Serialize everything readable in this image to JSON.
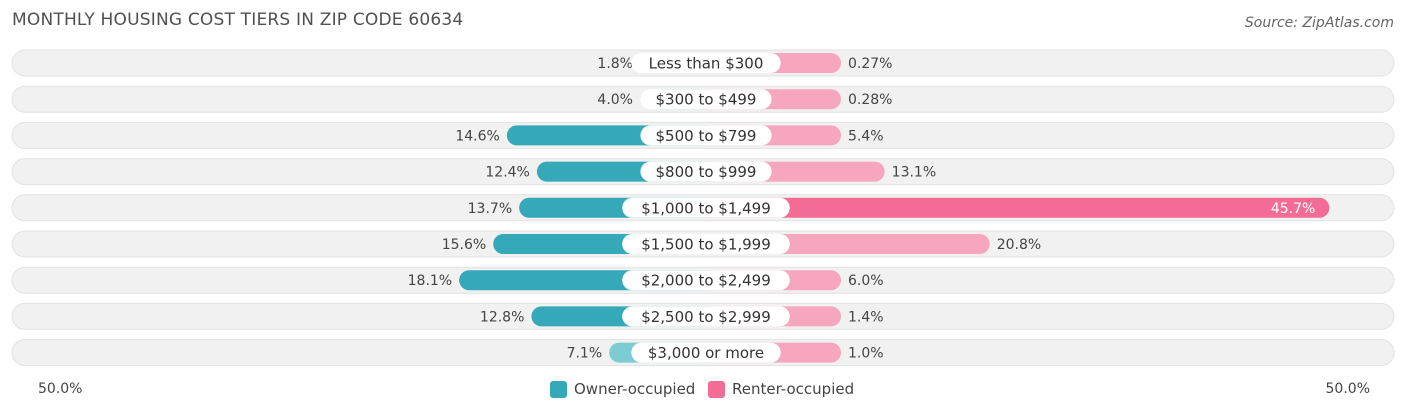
{
  "title": "MONTHLY HOUSING COST TIERS IN ZIP CODE 60634",
  "source": "Source: ZipAtlas.com",
  "colors": {
    "owner": "#35A9B8",
    "owner_strong": "#27A5B6",
    "owner_light": "#7DCBD3",
    "renter": "#F26C95",
    "renter_light": "#F6A6BE",
    "row_bg": "#F1F1F1"
  },
  "legend": {
    "owner_label": "Owner-occupied",
    "renter_label": "Renter-occupied"
  },
  "axis": {
    "left_label": "50.0%",
    "right_label": "50.0%"
  },
  "chart_data": {
    "type": "bar",
    "orientation": "diverging-horizontal",
    "title": "MONTHLY HOUSING COST TIERS IN ZIP CODE 60634",
    "categories": [
      "Less than $300",
      "$300 to $499",
      "$500 to $799",
      "$800 to $999",
      "$1,000 to $1,499",
      "$1,500 to $1,999",
      "$2,000 to $2,499",
      "$2,500 to $2,999",
      "$3,000 or more"
    ],
    "series": [
      {
        "name": "Owner-occupied",
        "values": [
          1.8,
          4.0,
          14.6,
          12.4,
          13.7,
          15.6,
          18.1,
          12.8,
          7.1
        ],
        "labels": [
          "1.8%",
          "4.0%",
          "14.6%",
          "12.4%",
          "13.7%",
          "15.6%",
          "18.1%",
          "12.8%",
          "7.1%"
        ]
      },
      {
        "name": "Renter-occupied",
        "values": [
          0.27,
          0.28,
          5.4,
          13.1,
          45.7,
          20.8,
          6.0,
          1.4,
          1.0
        ],
        "labels": [
          "0.27%",
          "0.28%",
          "5.4%",
          "13.1%",
          "45.7%",
          "20.8%",
          "6.0%",
          "1.4%",
          "1.0%"
        ]
      }
    ],
    "xlim": [
      -50,
      50
    ],
    "legend": "bottom-center"
  }
}
